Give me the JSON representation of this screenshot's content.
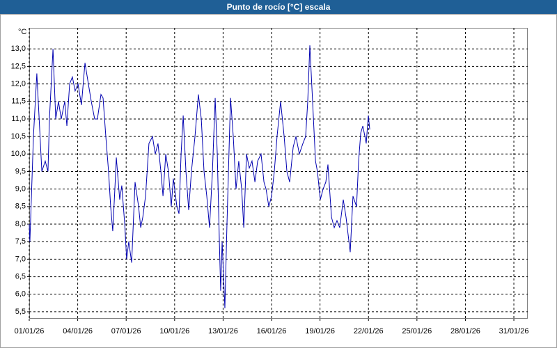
{
  "chart_data": {
    "type": "line",
    "title": "Punto de rocío [°C] escala",
    "y_label": "°C",
    "grid": true,
    "xlim": [
      1,
      31.86
    ],
    "xticks": [
      {
        "value": 1,
        "label": "01/01/26"
      },
      {
        "value": 4,
        "label": "04/01/26"
      },
      {
        "value": 7,
        "label": "07/01/26"
      },
      {
        "value": 10,
        "label": "10/01/26"
      },
      {
        "value": 13,
        "label": "13/01/26"
      },
      {
        "value": 16,
        "label": "16/01/26"
      },
      {
        "value": 19,
        "label": "19/01/26"
      },
      {
        "value": 22,
        "label": "22/01/26"
      },
      {
        "value": 25,
        "label": "25/01/26"
      },
      {
        "value": 28,
        "label": "28/01/26"
      },
      {
        "value": 31,
        "label": "31/01/26"
      }
    ],
    "ylim": [
      5.3,
      13.6
    ],
    "yticks": [
      {
        "value": 5.5,
        "label": "5,5"
      },
      {
        "value": 6.0,
        "label": "6,0"
      },
      {
        "value": 6.5,
        "label": "6,5"
      },
      {
        "value": 7.0,
        "label": "7,0"
      },
      {
        "value": 7.5,
        "label": "7,5"
      },
      {
        "value": 8.0,
        "label": "8,0"
      },
      {
        "value": 8.5,
        "label": "8,5"
      },
      {
        "value": 9.0,
        "label": "9,0"
      },
      {
        "value": 9.5,
        "label": "9,5"
      },
      {
        "value": 10.0,
        "label": "10,0"
      },
      {
        "value": 10.5,
        "label": "10,5"
      },
      {
        "value": 11.0,
        "label": "11,0"
      },
      {
        "value": 11.5,
        "label": "11,5"
      },
      {
        "value": 12.0,
        "label": "12,0"
      },
      {
        "value": 12.5,
        "label": "12,5"
      },
      {
        "value": 13.0,
        "label": "13,0"
      }
    ],
    "series": [
      {
        "color": "#0000b0",
        "x": [
          1.0,
          1.04,
          1.26,
          1.47,
          1.78,
          1.99,
          2.16,
          2.25,
          2.47,
          2.64,
          2.81,
          2.98,
          3.2,
          3.33,
          3.5,
          3.67,
          3.84,
          4.02,
          4.23,
          4.45,
          4.66,
          4.84,
          5.05,
          5.22,
          5.44,
          5.57,
          5.74,
          5.91,
          6.04,
          6.17,
          6.3,
          6.39,
          6.6,
          6.73,
          6.91,
          7.03,
          7.16,
          7.34,
          7.55,
          7.77,
          7.9,
          8.03,
          8.2,
          8.41,
          8.63,
          8.8,
          8.97,
          9.15,
          9.28,
          9.45,
          9.62,
          9.79,
          9.92,
          10.14,
          10.27,
          10.4,
          10.53,
          10.7,
          10.87,
          11.04,
          11.26,
          11.47,
          11.65,
          11.82,
          11.99,
          12.16,
          12.34,
          12.51,
          12.64,
          12.77,
          12.85,
          12.94,
          13.11,
          13.24,
          13.46,
          13.63,
          13.8,
          13.97,
          14.15,
          14.28,
          14.45,
          14.62,
          14.79,
          14.97,
          15.14,
          15.35,
          15.53,
          15.66,
          15.83,
          16.0,
          16.17,
          16.34,
          16.56,
          16.78,
          16.95,
          17.12,
          17.34,
          17.51,
          17.72,
          17.94,
          18.11,
          18.24,
          18.37,
          18.54,
          18.72,
          18.84,
          19.02,
          19.19,
          19.36,
          19.49,
          19.71,
          19.88,
          20.05,
          20.22,
          20.44,
          20.61,
          20.74,
          20.87,
          21.04,
          21.26,
          21.39,
          21.52,
          21.65,
          21.78,
          21.86,
          21.99,
          22.08
        ],
        "values": [
          8.0,
          7.5,
          10.5,
          12.3,
          9.5,
          9.8,
          9.5,
          11.0,
          13.0,
          11.0,
          11.5,
          11.0,
          11.5,
          10.8,
          12.0,
          12.2,
          11.8,
          12.0,
          11.4,
          12.6,
          12.0,
          11.5,
          11.0,
          11.0,
          11.7,
          11.6,
          10.5,
          9.5,
          8.5,
          7.8,
          9.0,
          9.9,
          8.7,
          9.1,
          8.0,
          7.0,
          7.5,
          6.9,
          9.2,
          8.5,
          7.9,
          8.2,
          8.8,
          10.3,
          10.5,
          10.0,
          10.3,
          9.5,
          8.8,
          10.0,
          9.5,
          8.5,
          9.3,
          8.5,
          8.3,
          10.0,
          11.1,
          9.5,
          8.4,
          9.5,
          10.5,
          11.7,
          11.0,
          9.5,
          8.8,
          7.9,
          9.5,
          11.6,
          10.0,
          7.5,
          6.1,
          7.5,
          5.6,
          8.0,
          11.6,
          10.5,
          9.0,
          9.8,
          9.0,
          7.9,
          10.0,
          9.6,
          9.8,
          9.2,
          9.8,
          10.0,
          9.2,
          9.0,
          8.5,
          8.8,
          9.5,
          10.5,
          11.5,
          10.5,
          9.5,
          9.2,
          10.2,
          10.5,
          10.0,
          10.3,
          10.5,
          11.5,
          13.1,
          11.5,
          9.8,
          9.5,
          8.7,
          9.0,
          9.2,
          9.7,
          8.2,
          7.9,
          8.1,
          7.9,
          8.7,
          8.2,
          7.7,
          7.2,
          8.8,
          8.5,
          9.8,
          10.6,
          10.8,
          10.5,
          10.3,
          11.1,
          10.7
        ]
      }
    ]
  }
}
